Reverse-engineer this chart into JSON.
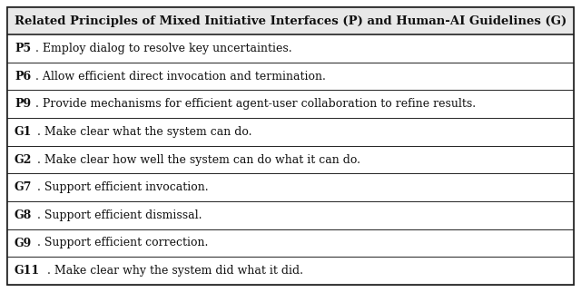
{
  "title": "Related Principles of Mixed Initiative Interfaces (P) and Human-AI Guidelines (G)",
  "rows": [
    {
      "bold_part": "P5",
      "rest": ". Employ dialog to resolve key uncertainties."
    },
    {
      "bold_part": "P6",
      "rest": ". Allow efficient direct invocation and termination."
    },
    {
      "bold_part": "P9",
      "rest": ". Provide mechanisms for efficient agent-user collaboration to refine results."
    },
    {
      "bold_part": "G1",
      "rest": ". Make clear what the system can do."
    },
    {
      "bold_part": "G2",
      "rest": ". Make clear how well the system can do what it can do."
    },
    {
      "bold_part": "G7",
      "rest": ". Support efficient invocation."
    },
    {
      "bold_part": "G8",
      "rest": ". Support efficient dismissal."
    },
    {
      "bold_part": "G9",
      "rest": ". Support efficient correction."
    },
    {
      "bold_part": "G11",
      "rest": ". Make clear why the system did what it did."
    }
  ],
  "border_color": "#222222",
  "text_color": "#111111",
  "header_bg": "#e8e8e8",
  "row_bg": "#ffffff",
  "font_size": 9.0,
  "title_font_size": 9.5
}
